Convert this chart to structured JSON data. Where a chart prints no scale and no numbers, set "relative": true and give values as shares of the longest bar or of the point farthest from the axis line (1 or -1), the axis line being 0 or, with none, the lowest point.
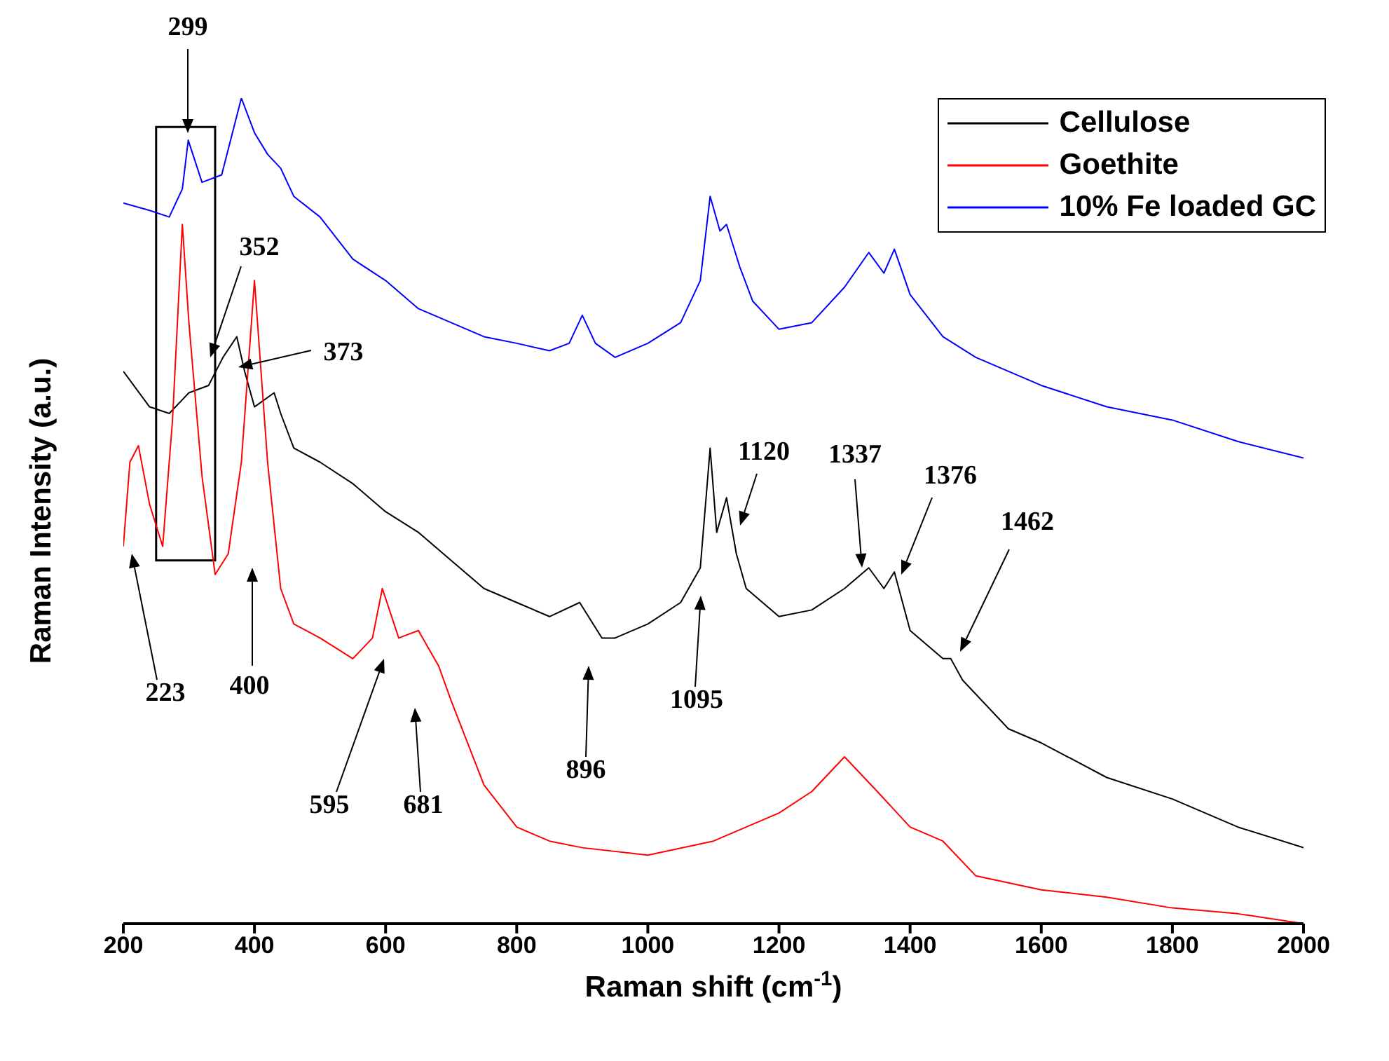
{
  "chart_data": {
    "type": "line",
    "relative": true,
    "xlabel": "Raman shift (cm$^{-1}$)",
    "ylabel": "Raman Intensity (a.u.)",
    "xlim": [
      200,
      2000
    ],
    "xticks": [
      200,
      400,
      600,
      800,
      1000,
      1200,
      1400,
      1600,
      1800,
      2000
    ],
    "legend": "top right",
    "marker": "none",
    "line_style": "solid",
    "series": [
      {
        "name": "Cellulose",
        "color": "#000000",
        "x": [
          200,
          240,
          270,
          300,
          330,
          352,
          373,
          385,
          400,
          430,
          440,
          460,
          500,
          550,
          600,
          650,
          700,
          750,
          800,
          850,
          896,
          930,
          950,
          1000,
          1050,
          1080,
          1095,
          1105,
          1120,
          1135,
          1150,
          1200,
          1250,
          1300,
          1337,
          1360,
          1376,
          1400,
          1450,
          1462,
          1480,
          1550,
          1600,
          1700,
          1800,
          1900,
          2000
        ],
        "values": [
          0.669,
          0.626,
          0.618,
          0.643,
          0.652,
          0.686,
          0.711,
          0.669,
          0.626,
          0.643,
          0.618,
          0.576,
          0.559,
          0.533,
          0.499,
          0.474,
          0.44,
          0.406,
          0.389,
          0.372,
          0.389,
          0.346,
          0.346,
          0.363,
          0.389,
          0.431,
          0.576,
          0.474,
          0.516,
          0.448,
          0.406,
          0.372,
          0.38,
          0.406,
          0.431,
          0.406,
          0.426,
          0.355,
          0.321,
          0.321,
          0.295,
          0.236,
          0.219,
          0.177,
          0.151,
          0.117,
          0.092
        ]
      },
      {
        "name": "Goethite",
        "color": "#ff0000",
        "x": [
          200,
          210,
          223,
          240,
          260,
          275,
          290,
          300,
          320,
          340,
          360,
          380,
          400,
          420,
          440,
          460,
          500,
          550,
          580,
          595,
          620,
          650,
          681,
          700,
          750,
          800,
          850,
          900,
          1000,
          1100,
          1200,
          1250,
          1300,
          1350,
          1400,
          1450,
          1500,
          1600,
          1700,
          1800,
          1900,
          2000
        ],
        "values": [
          0.457,
          0.559,
          0.579,
          0.508,
          0.457,
          0.61,
          0.847,
          0.728,
          0.542,
          0.423,
          0.448,
          0.559,
          0.779,
          0.559,
          0.406,
          0.363,
          0.346,
          0.321,
          0.346,
          0.406,
          0.346,
          0.355,
          0.312,
          0.27,
          0.168,
          0.117,
          0.1,
          0.092,
          0.083,
          0.1,
          0.134,
          0.16,
          0.202,
          0.16,
          0.117,
          0.1,
          0.058,
          0.041,
          0.032,
          0.019,
          0.012,
          0
        ]
      },
      {
        "name": "10% Fe loaded GC",
        "color": "#0000ff",
        "x": [
          200,
          240,
          270,
          290,
          299,
          320,
          350,
          380,
          400,
          420,
          440,
          460,
          500,
          550,
          600,
          650,
          700,
          750,
          800,
          850,
          880,
          900,
          920,
          950,
          1000,
          1050,
          1080,
          1095,
          1110,
          1120,
          1140,
          1160,
          1200,
          1250,
          1300,
          1337,
          1360,
          1376,
          1400,
          1450,
          1500,
          1600,
          1700,
          1800,
          1900,
          2000
        ],
        "values": [
          0.873,
          0.864,
          0.856,
          0.89,
          0.949,
          0.898,
          0.907,
          1,
          0.958,
          0.932,
          0.915,
          0.881,
          0.856,
          0.805,
          0.779,
          0.745,
          0.728,
          0.711,
          0.703,
          0.694,
          0.703,
          0.737,
          0.703,
          0.686,
          0.703,
          0.728,
          0.779,
          0.881,
          0.839,
          0.847,
          0.796,
          0.754,
          0.72,
          0.728,
          0.771,
          0.813,
          0.788,
          0.817,
          0.762,
          0.711,
          0.686,
          0.652,
          0.626,
          0.61,
          0.584,
          0.564
        ]
      }
    ],
    "annotations": [
      "299",
      "352",
      "373",
      "223",
      "400",
      "595",
      "681",
      "896",
      "1095",
      "1120",
      "1337",
      "1376",
      "1462"
    ]
  }
}
